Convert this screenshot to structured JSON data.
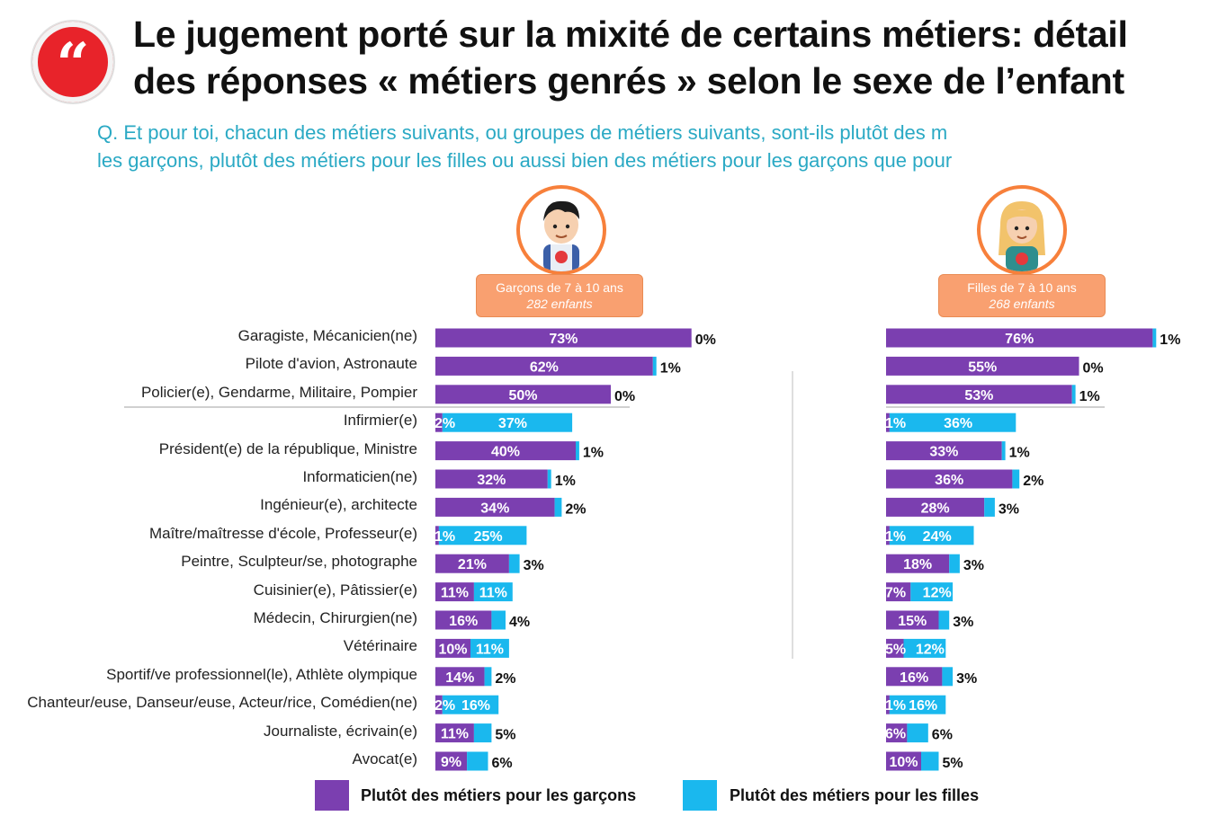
{
  "title_lines": [
    "Le jugement porté sur la mixité de certains métiers: détail",
    "des réponses « métiers genrés » selon le sexe de l’enfant"
  ],
  "subtitle_lines": [
    "Q. Et pour toi, chacun des métiers suivants, ou groupes de métiers suivants, sont-ils plutôt des m",
    "les garçons, plutôt des métiers pour les filles ou aussi bien des métiers pour les garçons que pour"
  ],
  "quote_glyph": "“",
  "groups": [
    {
      "title": "Garçons de 7 à 10 ans",
      "count": "282 enfants"
    },
    {
      "title": "Filles de 7 à 10 ans",
      "count": "268 enfants"
    }
  ],
  "colors": {
    "boys": "#7b3fb0",
    "girls": "#1ab8ee",
    "accent": "#f7803b",
    "subtitle": "#2aa9c4",
    "quote": "#e8232a"
  },
  "legend": {
    "boys": "Plutôt des métiers pour les garçons",
    "girls": "Plutôt des métiers pour les filles"
  },
  "chart_data": [
    {
      "type": "bar",
      "stacked": true,
      "orientation": "horizontal",
      "group": "Garçons de 7 à 10 ans",
      "categories": [
        "Garagiste, Mécanicien(ne)",
        "Pilote d'avion, Astronaute",
        "Policier(e), Gendarme, Militaire, Pompier",
        "Infirmier(e)",
        "Président(e) de la république, Ministre",
        "Informaticien(ne)",
        "Ingénieur(e), architecte",
        "Maître/maîtresse d'école, Professeur(e)",
        "Peintre, Sculpteur/se, photographe",
        "Cuisinier(e), Pâtissier(e)",
        "Médecin, Chirurgien(ne)",
        "Vétérinaire",
        "Sportif/ve professionnel(le), Athlète olympique",
        "Chanteur/euse, Danseur/euse, Acteur/rice, Comédien(ne)",
        "Journaliste, écrivain(e)",
        "Avocat(e)"
      ],
      "series": [
        {
          "name": "Plutôt des métiers pour les garçons",
          "values": [
            73,
            62,
            50,
            2,
            40,
            32,
            34,
            1,
            21,
            11,
            16,
            10,
            14,
            2,
            11,
            9
          ],
          "labels": [
            "73%",
            "62%",
            "50%",
            "2%",
            "40%",
            "32%",
            "34%",
            "1%",
            "21%",
            "11%",
            "16%",
            "10%",
            "14%",
            "2%",
            "11%",
            "9%"
          ]
        },
        {
          "name": "Plutôt des métiers pour les filles",
          "values": [
            0,
            1,
            0,
            37,
            1,
            1,
            2,
            25,
            3,
            11,
            4,
            11,
            2,
            16,
            5,
            6
          ],
          "labels": [
            "0%",
            "1%",
            "0%",
            "37%",
            "1%",
            "1%",
            "2%",
            "25%",
            "3%",
            "11%",
            "4%",
            "11%",
            "2%",
            "16%",
            "5%",
            "6%"
          ]
        }
      ]
    },
    {
      "type": "bar",
      "stacked": true,
      "orientation": "horizontal",
      "group": "Filles de 7 à 10 ans",
      "categories": [
        "Garagiste, Mécanicien(ne)",
        "Pilote d'avion, Astronaute",
        "Policier(e), Gendarme, Militaire, Pompier",
        "Infirmier(e)",
        "Président(e) de la république, Ministre",
        "Informaticien(ne)",
        "Ingénieur(e), architecte",
        "Maître/maîtresse d'école, Professeur(e)",
        "Peintre, Sculpteur/se, photographe",
        "Cuisinier(e), Pâtissier(e)",
        "Médecin, Chirurgien(ne)",
        "Vétérinaire",
        "Sportif/ve professionnel(le), Athlète olympique",
        "Chanteur/euse, Danseur/euse, Acteur/rice, Comédien(ne)",
        "Journaliste, écrivain(e)",
        "Avocat(e)"
      ],
      "series": [
        {
          "name": "Plutôt des métiers pour les garçons",
          "values": [
            76,
            55,
            53,
            1,
            33,
            36,
            28,
            1,
            18,
            7,
            15,
            5,
            16,
            1,
            6,
            10
          ],
          "labels": [
            "76%",
            "55%",
            "53%",
            "1%",
            "33%",
            "36%",
            "28%",
            "1%",
            "18%",
            "7%",
            "15%",
            "5%",
            "16%",
            "1%",
            "6%",
            "10%"
          ]
        },
        {
          "name": "Plutôt des métiers pour les filles",
          "values": [
            1,
            0,
            1,
            36,
            1,
            2,
            3,
            24,
            3,
            12,
            3,
            12,
            3,
            16,
            6,
            5
          ],
          "labels": [
            "1%",
            "0%",
            "1%",
            "36%",
            "1%",
            "2%",
            "3%",
            "24%",
            "3%",
            "12%",
            "3%",
            "12%",
            "3%",
            "16%",
            "6%",
            "5%"
          ]
        }
      ]
    }
  ]
}
